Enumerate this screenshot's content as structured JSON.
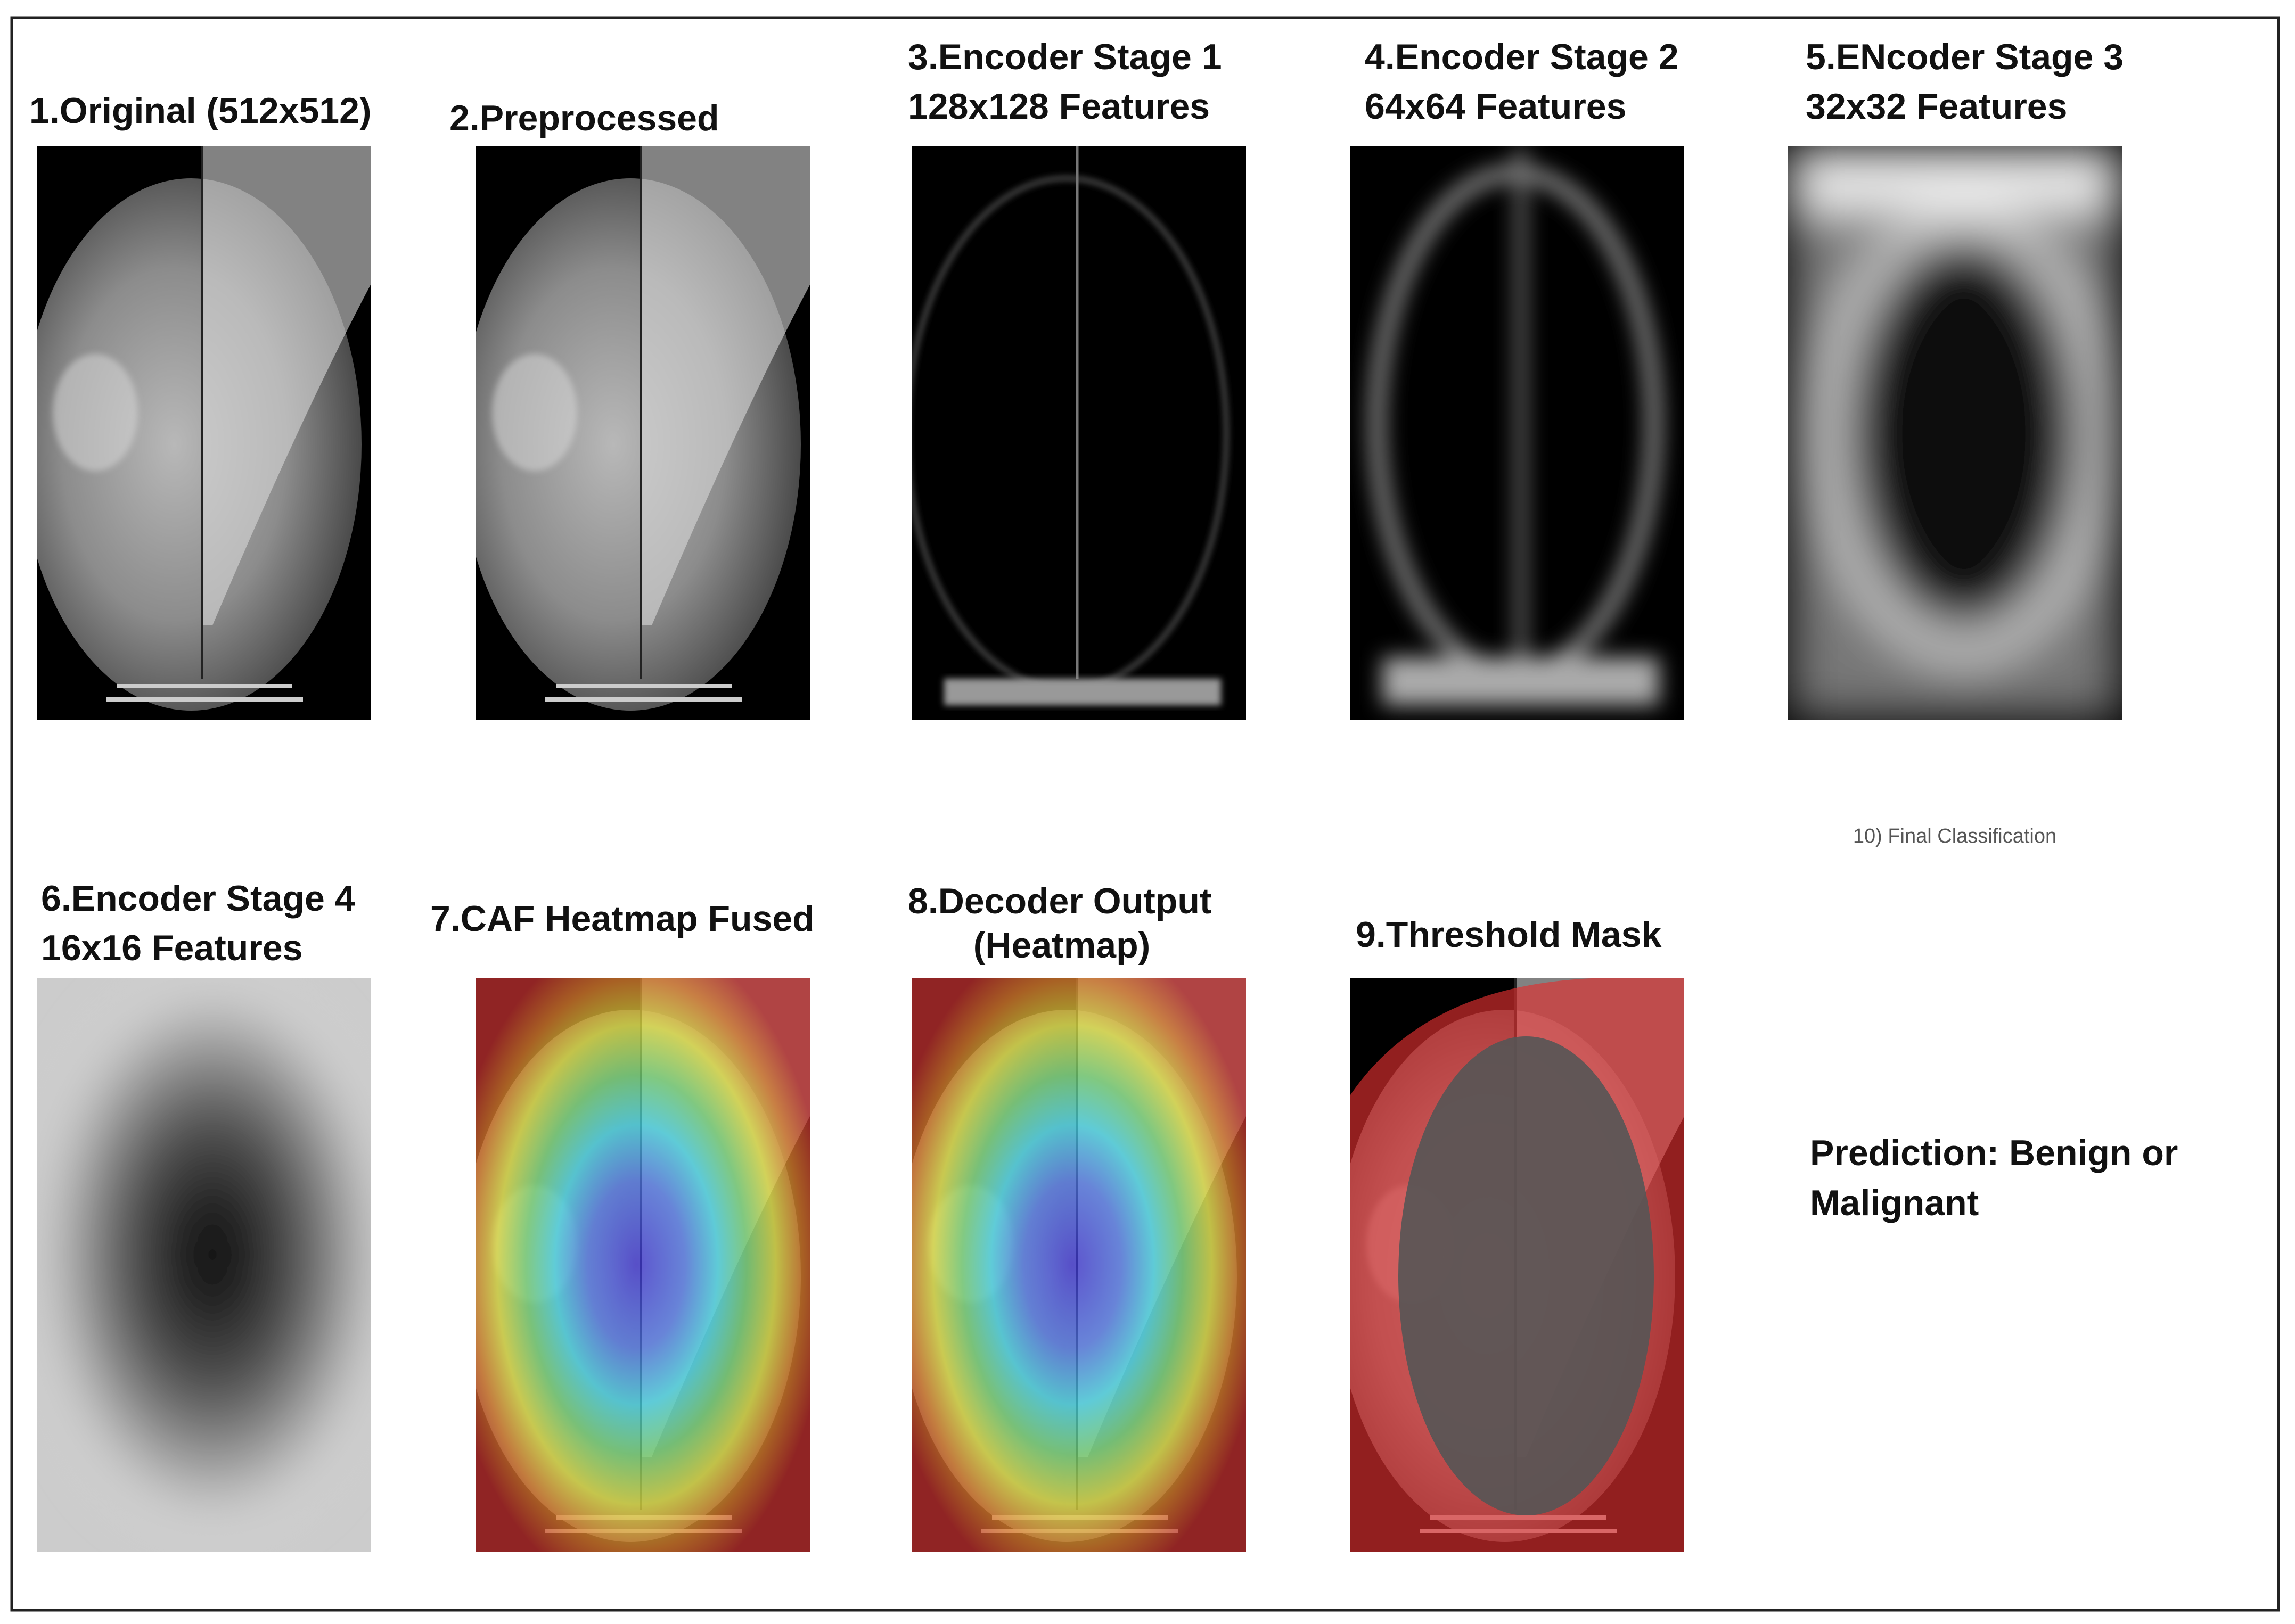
{
  "panels": [
    {
      "title": [
        "1.Original (512x512)"
      ]
    },
    {
      "title": [
        "2.Preprocessed"
      ]
    },
    {
      "title": [
        "3.Encoder Stage 1",
        "128x128 Features"
      ]
    },
    {
      "title": [
        "4.Encoder Stage 2",
        "64x64 Features"
      ]
    },
    {
      "title": [
        "5.ENcoder Stage 3",
        "32x32 Features"
      ]
    },
    {
      "title": [
        "6.Encoder Stage 4",
        "16x16 Features"
      ]
    },
    {
      "title": [
        "7.CAF Heatmap Fused"
      ]
    },
    {
      "title": [
        "8.Decoder Output",
        "(Heatmap)"
      ]
    },
    {
      "title": [
        "9.Threshold Mask"
      ]
    }
  ],
  "final_classification": "10) Final Classification",
  "prediction": [
    "Prediction: Benign or",
    "Malignant"
  ]
}
